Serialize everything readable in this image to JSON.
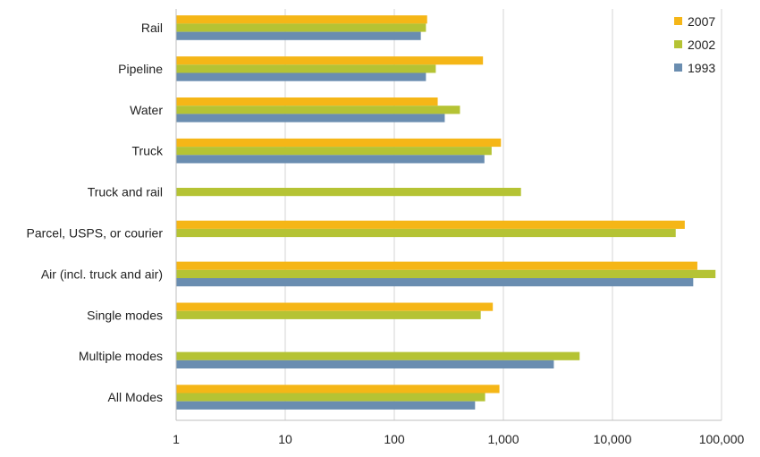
{
  "chart_data": {
    "type": "bar",
    "orientation": "horizontal",
    "x_scale": "log",
    "xlim": [
      1,
      100000
    ],
    "x_ticks": [
      1,
      10,
      100,
      1000,
      10000,
      100000
    ],
    "x_tick_labels": [
      "1",
      "10",
      "100",
      "1,000",
      "10,000",
      "100,000"
    ],
    "grid": "vertical",
    "legend_position": "top-right",
    "categories": [
      "Rail",
      "Pipeline",
      "Water",
      "Truck",
      "Truck and rail",
      "Parcel, USPS, or courier",
      "Air (incl. truck and air)",
      "Single modes",
      "Multiple modes",
      "All Modes"
    ],
    "series": [
      {
        "name": "2007",
        "color": "#F5B617",
        "values": [
          200,
          650,
          250,
          950,
          null,
          46000,
          60000,
          800,
          null,
          920
        ]
      },
      {
        "name": "2002",
        "color": "#B5C334",
        "values": [
          195,
          240,
          400,
          780,
          1450,
          38000,
          88000,
          620,
          5000,
          680
        ]
      },
      {
        "name": "1993",
        "color": "#6A8DB0",
        "values": [
          175,
          195,
          290,
          670,
          null,
          null,
          55000,
          null,
          2900,
          550
        ]
      }
    ]
  }
}
